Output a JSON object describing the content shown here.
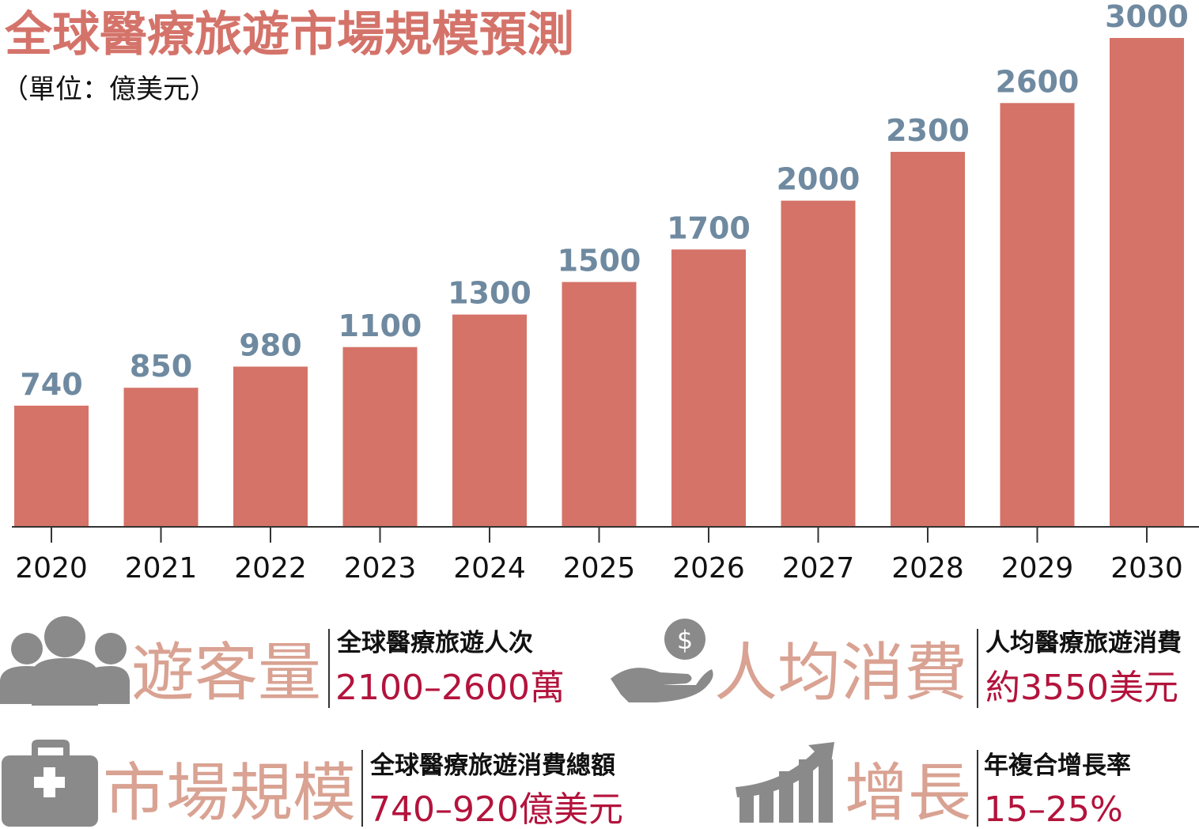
{
  "chart_data": {
    "type": "bar",
    "title": "全球醫療旅遊市場規模預測",
    "subtitle": "（單位：億美元）",
    "categories": [
      "2020",
      "2021",
      "2022",
      "2023",
      "2024",
      "2025",
      "2026",
      "2027",
      "2028",
      "2029",
      "2030"
    ],
    "values": [
      740,
      850,
      980,
      1100,
      1300,
      1500,
      1700,
      2000,
      2300,
      2600,
      3000
    ],
    "color": "#d57368",
    "value_label_color": "#6f8aa0"
  },
  "info": [
    {
      "heading": "遊客量",
      "label": "全球醫療旅遊人次",
      "value": "2100–2600萬"
    },
    {
      "heading": "人均消費",
      "label": "人均醫療旅遊消費",
      "value": "約3550美元"
    },
    {
      "heading": "市場規模",
      "label": "全球醫療旅遊消費總額",
      "value": "740–920億美元"
    },
    {
      "heading": "增長",
      "label": "年複合增長率",
      "value": "15–25%"
    }
  ]
}
